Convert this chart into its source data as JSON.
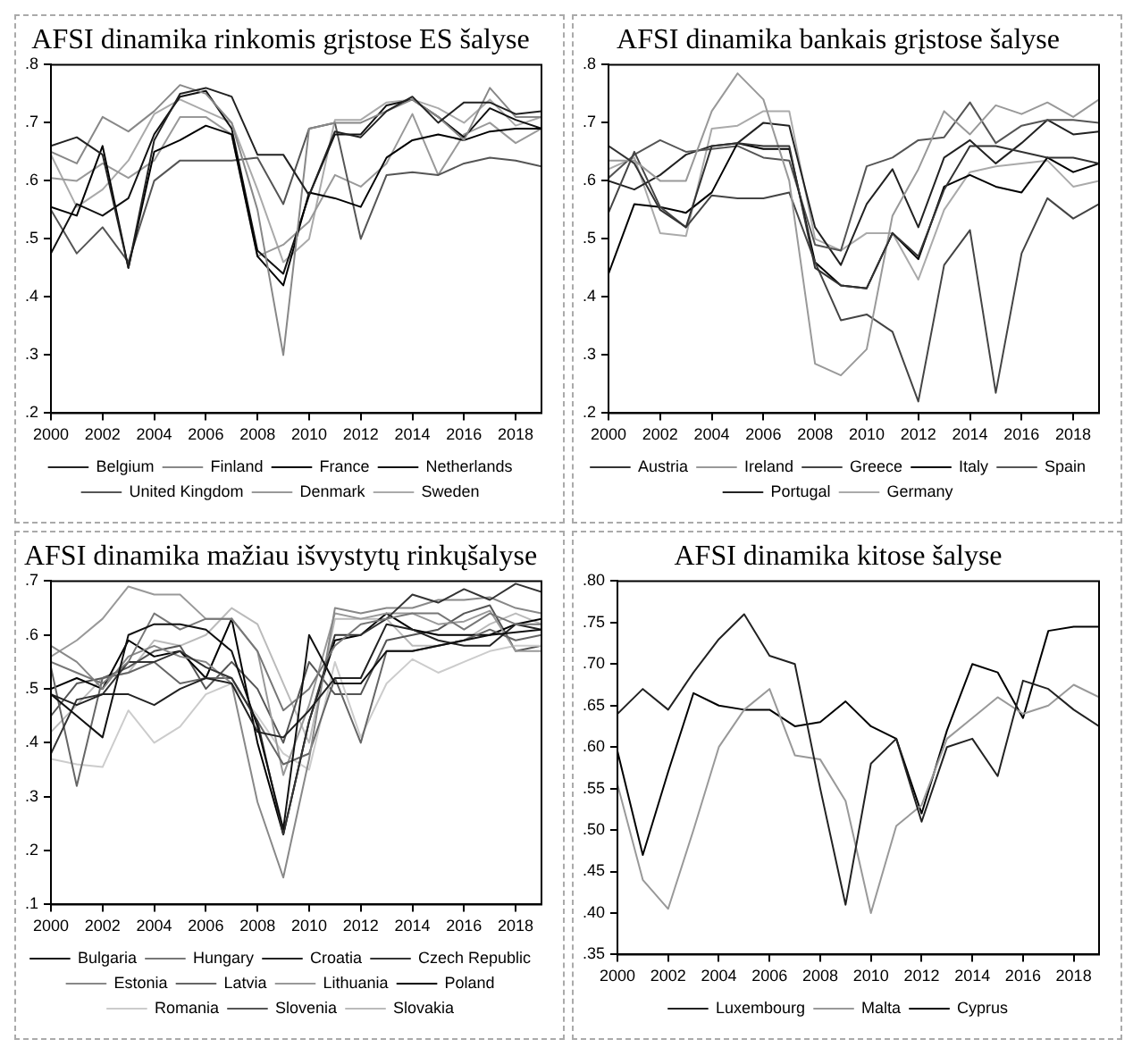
{
  "chart_data": [
    {
      "type": "line",
      "title": "AFSI dinamika rinkomis grįstose ES šalyse",
      "x": [
        2000,
        2001,
        2002,
        2003,
        2004,
        2005,
        2006,
        2007,
        2008,
        2009,
        2010,
        2011,
        2012,
        2013,
        2014,
        2015,
        2016,
        2017,
        2018,
        2019
      ],
      "xlim": [
        2000,
        2019
      ],
      "xticks": [
        2000,
        2002,
        2004,
        2006,
        2008,
        2010,
        2012,
        2014,
        2016,
        2018
      ],
      "ylim": [
        0.2,
        0.8
      ],
      "yticks": [
        {
          "value": 0.2,
          "label": ".2"
        },
        {
          "value": 0.3,
          "label": ".3"
        },
        {
          "value": 0.4,
          "label": ".4"
        },
        {
          "value": 0.5,
          "label": ".5"
        },
        {
          "value": 0.6,
          "label": ".6"
        },
        {
          "value": 0.7,
          "label": ".7"
        },
        {
          "value": 0.8,
          "label": ".8"
        }
      ],
      "legend": "bottom",
      "grid": false,
      "line_style": "solid",
      "marker": "none",
      "series": [
        {
          "name": "Belgium",
          "color": "#222222",
          "values": [
            0.66,
            0.675,
            0.645,
            0.45,
            0.67,
            0.75,
            0.76,
            0.745,
            0.645,
            0.645,
            0.575,
            0.685,
            0.675,
            0.72,
            0.745,
            0.7,
            0.735,
            0.735,
            0.715,
            0.72
          ]
        },
        {
          "name": "Finland",
          "color": "#888888",
          "values": [
            0.65,
            0.63,
            0.71,
            0.685,
            0.72,
            0.765,
            0.75,
            0.7,
            0.55,
            0.3,
            0.69,
            0.7,
            0.7,
            0.72,
            0.74,
            0.71,
            0.67,
            0.76,
            0.71,
            0.71
          ]
        },
        {
          "name": "France",
          "color": "#000000",
          "values": [
            0.555,
            0.54,
            0.66,
            0.45,
            0.65,
            0.67,
            0.695,
            0.68,
            0.47,
            0.42,
            0.58,
            0.57,
            0.555,
            0.64,
            0.67,
            0.68,
            0.67,
            0.685,
            0.69,
            0.69
          ]
        },
        {
          "name": "Netherlands",
          "color": "#111111",
          "values": [
            0.475,
            0.56,
            0.54,
            0.57,
            0.68,
            0.745,
            0.755,
            0.69,
            0.48,
            0.44,
            0.575,
            0.68,
            0.68,
            0.73,
            0.74,
            0.71,
            0.675,
            0.725,
            0.705,
            0.69
          ]
        },
        {
          "name": "United Kingdom",
          "color": "#555555",
          "values": [
            0.55,
            0.475,
            0.52,
            0.46,
            0.6,
            0.635,
            0.635,
            0.635,
            0.64,
            0.56,
            0.69,
            0.7,
            0.5,
            0.61,
            0.615,
            0.61,
            0.63,
            0.64,
            0.635,
            0.625
          ]
        },
        {
          "name": "Denmark",
          "color": "#999999",
          "values": [
            0.605,
            0.6,
            0.63,
            0.605,
            0.635,
            0.71,
            0.71,
            0.68,
            0.47,
            0.49,
            0.53,
            0.61,
            0.59,
            0.63,
            0.715,
            0.61,
            0.68,
            0.7,
            0.665,
            0.69
          ]
        },
        {
          "name": "Sweden",
          "color": "#aaaaaa",
          "values": [
            0.645,
            0.555,
            0.585,
            0.635,
            0.715,
            0.74,
            0.72,
            0.7,
            0.585,
            0.46,
            0.5,
            0.705,
            0.705,
            0.735,
            0.74,
            0.725,
            0.7,
            0.74,
            0.695,
            0.71
          ]
        }
      ]
    },
    {
      "type": "line",
      "title": "AFSI dinamika bankais grįstose šalyse",
      "x": [
        2000,
        2001,
        2002,
        2003,
        2004,
        2005,
        2006,
        2007,
        2008,
        2009,
        2010,
        2011,
        2012,
        2013,
        2014,
        2015,
        2016,
        2017,
        2018,
        2019
      ],
      "xlim": [
        2000,
        2019
      ],
      "xticks": [
        2000,
        2002,
        2004,
        2006,
        2008,
        2010,
        2012,
        2014,
        2016,
        2018
      ],
      "ylim": [
        0.2,
        0.8
      ],
      "yticks": [
        {
          "value": 0.2,
          "label": ".2"
        },
        {
          "value": 0.3,
          "label": ".3"
        },
        {
          "value": 0.4,
          "label": ".4"
        },
        {
          "value": 0.5,
          "label": ".5"
        },
        {
          "value": 0.6,
          "label": ".6"
        },
        {
          "value": 0.7,
          "label": ".7"
        },
        {
          "value": 0.8,
          "label": ".8"
        }
      ],
      "legend": "bottom",
      "grid": false,
      "line_style": "solid",
      "marker": "none",
      "series": [
        {
          "name": "Austria",
          "color": "#333333",
          "values": [
            0.66,
            0.63,
            0.55,
            0.52,
            0.66,
            0.665,
            0.66,
            0.66,
            0.45,
            0.42,
            0.415,
            0.51,
            0.47,
            0.585,
            0.66,
            0.66,
            0.65,
            0.64,
            0.64,
            0.63
          ]
        },
        {
          "name": "Ireland",
          "color": "#999999",
          "values": [
            0.635,
            0.635,
            0.6,
            0.6,
            0.72,
            0.785,
            0.74,
            0.6,
            0.285,
            0.265,
            0.31,
            0.54,
            0.62,
            0.72,
            0.68,
            0.73,
            0.715,
            0.735,
            0.71,
            0.74
          ]
        },
        {
          "name": "Greece",
          "color": "#444444",
          "values": [
            0.545,
            0.65,
            0.555,
            0.52,
            0.575,
            0.57,
            0.57,
            0.58,
            0.46,
            0.36,
            0.37,
            0.34,
            0.22,
            0.455,
            0.515,
            0.235,
            0.475,
            0.57,
            0.535,
            0.56
          ]
        },
        {
          "name": "Italy",
          "color": "#000000",
          "values": [
            0.44,
            0.56,
            0.555,
            0.545,
            0.58,
            0.665,
            0.655,
            0.655,
            0.46,
            0.42,
            0.415,
            0.51,
            0.465,
            0.59,
            0.61,
            0.59,
            0.58,
            0.64,
            0.615,
            0.63
          ]
        },
        {
          "name": "Spain",
          "color": "#555555",
          "values": [
            0.605,
            0.645,
            0.67,
            0.65,
            0.655,
            0.66,
            0.64,
            0.635,
            0.49,
            0.48,
            0.625,
            0.64,
            0.67,
            0.675,
            0.735,
            0.665,
            0.695,
            0.705,
            0.705,
            0.7
          ]
        },
        {
          "name": "Portugal",
          "color": "#222222",
          "values": [
            0.6,
            0.585,
            0.61,
            0.645,
            0.66,
            0.665,
            0.7,
            0.695,
            0.52,
            0.455,
            0.56,
            0.62,
            0.52,
            0.64,
            0.67,
            0.63,
            0.665,
            0.705,
            0.68,
            0.685
          ]
        },
        {
          "name": "Germany",
          "color": "#aaaaaa",
          "values": [
            0.62,
            0.64,
            0.51,
            0.505,
            0.69,
            0.695,
            0.72,
            0.72,
            0.5,
            0.48,
            0.51,
            0.51,
            0.43,
            0.55,
            0.615,
            0.625,
            0.63,
            0.635,
            0.59,
            0.6
          ]
        }
      ]
    },
    {
      "type": "line",
      "title": "AFSI dinamika mažiau išvystytų rinkųšalyse",
      "x": [
        2000,
        2001,
        2002,
        2003,
        2004,
        2005,
        2006,
        2007,
        2008,
        2009,
        2010,
        2011,
        2012,
        2013,
        2014,
        2015,
        2016,
        2017,
        2018,
        2019
      ],
      "xlim": [
        2000,
        2019
      ],
      "xticks": [
        2000,
        2002,
        2004,
        2006,
        2008,
        2010,
        2012,
        2014,
        2016,
        2018
      ],
      "ylim": [
        0.1,
        0.7
      ],
      "yticks": [
        {
          "value": 0.1,
          "label": ".1"
        },
        {
          "value": 0.2,
          "label": ".2"
        },
        {
          "value": 0.3,
          "label": ".3"
        },
        {
          "value": 0.4,
          "label": ".4"
        },
        {
          "value": 0.5,
          "label": ".5"
        },
        {
          "value": 0.6,
          "label": ".6"
        },
        {
          "value": 0.7,
          "label": ".7"
        }
      ],
      "legend": "bottom",
      "grid": false,
      "line_style": "solid",
      "marker": "none",
      "series": [
        {
          "name": "Bulgaria",
          "color": "#111111",
          "values": [
            0.49,
            0.45,
            0.41,
            0.6,
            0.62,
            0.62,
            0.61,
            0.57,
            0.43,
            0.24,
            0.6,
            0.51,
            0.51,
            0.57,
            0.57,
            0.58,
            0.59,
            0.6,
            0.605,
            0.61
          ]
        },
        {
          "name": "Hungary",
          "color": "#777777",
          "values": [
            0.55,
            0.53,
            0.51,
            0.55,
            0.64,
            0.61,
            0.63,
            0.63,
            0.57,
            0.46,
            0.5,
            0.58,
            0.62,
            0.63,
            0.64,
            0.64,
            0.61,
            0.64,
            0.62,
            0.62
          ]
        },
        {
          "name": "Croatia",
          "color": "#222222",
          "values": [
            0.49,
            0.47,
            0.49,
            0.49,
            0.47,
            0.5,
            0.52,
            0.51,
            0.42,
            0.41,
            0.46,
            0.52,
            0.52,
            0.62,
            0.61,
            0.59,
            0.58,
            0.58,
            0.62,
            0.61
          ]
        },
        {
          "name": "Czech Republic",
          "color": "#333333",
          "values": [
            0.38,
            0.48,
            0.49,
            0.55,
            0.55,
            0.57,
            0.54,
            0.52,
            0.44,
            0.23,
            0.44,
            0.6,
            0.6,
            0.63,
            0.675,
            0.66,
            0.685,
            0.665,
            0.695,
            0.68
          ]
        },
        {
          "name": "Estonia",
          "color": "#888888",
          "values": [
            0.58,
            0.55,
            0.5,
            0.56,
            0.58,
            0.56,
            0.55,
            0.51,
            0.29,
            0.15,
            0.37,
            0.65,
            0.64,
            0.65,
            0.65,
            0.665,
            0.665,
            0.67,
            0.65,
            0.64
          ]
        },
        {
          "name": "Latvia",
          "color": "#666666",
          "values": [
            0.54,
            0.32,
            0.52,
            0.53,
            0.55,
            0.51,
            0.52,
            0.52,
            0.44,
            0.36,
            0.38,
            0.52,
            0.4,
            0.57,
            0.57,
            0.58,
            0.59,
            0.61,
            0.59,
            0.6
          ]
        },
        {
          "name": "Lithuania",
          "color": "#999999",
          "values": [
            0.56,
            0.59,
            0.63,
            0.69,
            0.675,
            0.675,
            0.63,
            0.63,
            0.57,
            0.34,
            0.47,
            0.64,
            0.63,
            0.64,
            0.64,
            0.62,
            0.625,
            0.645,
            0.57,
            0.57
          ]
        },
        {
          "name": "Poland",
          "color": "#000000",
          "values": [
            0.5,
            0.52,
            0.5,
            0.59,
            0.56,
            0.57,
            0.52,
            0.63,
            0.4,
            0.23,
            0.44,
            0.59,
            0.6,
            0.64,
            0.61,
            0.6,
            0.6,
            0.6,
            0.62,
            0.63
          ]
        },
        {
          "name": "Romania",
          "color": "#cccccc",
          "values": [
            0.37,
            0.36,
            0.355,
            0.46,
            0.4,
            0.43,
            0.49,
            0.51,
            0.45,
            0.38,
            0.35,
            0.55,
            0.41,
            0.51,
            0.555,
            0.53,
            0.55,
            0.57,
            0.58,
            0.58
          ]
        },
        {
          "name": "Slovenia",
          "color": "#555555",
          "values": [
            0.45,
            0.51,
            0.52,
            0.54,
            0.57,
            0.58,
            0.5,
            0.55,
            0.5,
            0.4,
            0.55,
            0.49,
            0.49,
            0.59,
            0.6,
            0.61,
            0.64,
            0.655,
            0.57,
            0.58
          ]
        },
        {
          "name": "Slovakia",
          "color": "#bbbbbb",
          "values": [
            0.42,
            0.47,
            0.52,
            0.53,
            0.59,
            0.58,
            0.6,
            0.65,
            0.62,
            0.51,
            0.4,
            0.63,
            0.63,
            0.63,
            0.58,
            0.58,
            0.59,
            0.62,
            0.64,
            0.62
          ]
        }
      ]
    },
    {
      "type": "line",
      "title": "AFSI dinamika kitose šalyse",
      "x": [
        2000,
        2001,
        2002,
        2003,
        2004,
        2005,
        2006,
        2007,
        2008,
        2009,
        2010,
        2011,
        2012,
        2013,
        2014,
        2015,
        2016,
        2017,
        2018,
        2019
      ],
      "xlim": [
        2000,
        2019
      ],
      "xticks": [
        2000,
        2002,
        2004,
        2006,
        2008,
        2010,
        2012,
        2014,
        2016,
        2018
      ],
      "ylim": [
        0.35,
        0.8
      ],
      "yticks": [
        {
          "value": 0.35,
          "label": ".35"
        },
        {
          "value": 0.4,
          "label": ".40"
        },
        {
          "value": 0.45,
          "label": ".45"
        },
        {
          "value": 0.5,
          "label": ".50"
        },
        {
          "value": 0.55,
          "label": ".55"
        },
        {
          "value": 0.6,
          "label": ".60"
        },
        {
          "value": 0.65,
          "label": ".65"
        },
        {
          "value": 0.7,
          "label": ".70"
        },
        {
          "value": 0.75,
          "label": ".75"
        },
        {
          "value": 0.8,
          "label": ".80"
        }
      ],
      "legend": "bottom",
      "grid": false,
      "line_style": "solid",
      "marker": "none",
      "series": [
        {
          "name": "Luxembourg",
          "color": "#222222",
          "values": [
            0.64,
            0.67,
            0.645,
            0.69,
            0.73,
            0.76,
            0.71,
            0.7,
            0.55,
            0.41,
            0.58,
            0.61,
            0.51,
            0.6,
            0.61,
            0.565,
            0.68,
            0.67,
            0.645,
            0.625
          ]
        },
        {
          "name": "Malta",
          "color": "#999999",
          "values": [
            0.555,
            0.44,
            0.405,
            0.5,
            0.6,
            0.645,
            0.67,
            0.59,
            0.585,
            0.535,
            0.4,
            0.505,
            0.53,
            0.61,
            0.635,
            0.66,
            0.64,
            0.65,
            0.675,
            0.66
          ]
        },
        {
          "name": "Cyprus",
          "color": "#000000",
          "values": [
            0.595,
            0.47,
            0.57,
            0.665,
            0.65,
            0.645,
            0.645,
            0.625,
            0.63,
            0.655,
            0.625,
            0.61,
            0.52,
            0.62,
            0.7,
            0.69,
            0.635,
            0.74,
            0.745,
            0.745
          ]
        }
      ]
    }
  ]
}
